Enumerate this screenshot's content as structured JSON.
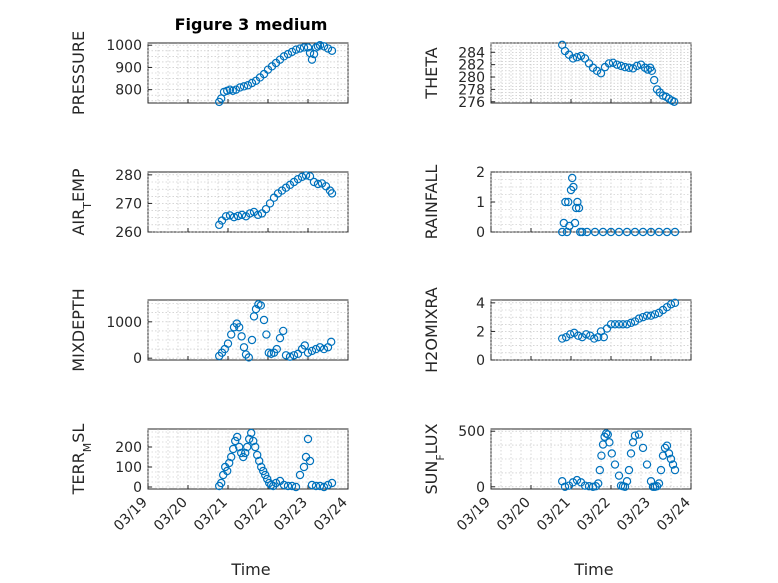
{
  "figure_title": "Figure 3 medium",
  "xlabel": "Time",
  "marker_color": "#0072BD",
  "chart_data": [
    {
      "type": "scatter",
      "name": "PRESSURE",
      "ylabel_main": "PRESSURE",
      "ylabel_sub": "",
      "ylabel_tail": "",
      "ylim": [
        740,
        1010
      ],
      "yticks": [
        800,
        900,
        1000
      ],
      "x": [
        20.78,
        20.83,
        20.9,
        20.98,
        21.05,
        21.12,
        21.2,
        21.3,
        21.4,
        21.5,
        21.6,
        21.7,
        21.8,
        21.9,
        22.0,
        22.1,
        22.2,
        22.3,
        22.4,
        22.5,
        22.6,
        22.7,
        22.8,
        22.9,
        23.0,
        23.05,
        23.1,
        23.15,
        23.2,
        23.25,
        23.3,
        23.4,
        23.5,
        23.6
      ],
      "y": [
        745,
        760,
        790,
        795,
        800,
        795,
        800,
        810,
        815,
        820,
        830,
        840,
        855,
        870,
        890,
        905,
        920,
        935,
        950,
        960,
        970,
        980,
        985,
        990,
        990,
        965,
        935,
        960,
        990,
        995,
        1000,
        995,
        985,
        975
      ]
    },
    {
      "type": "scatter",
      "name": "THETA",
      "ylabel_main": "THETA",
      "ylabel_sub": "",
      "ylabel_tail": "",
      "ylim": [
        275.8,
        285.5
      ],
      "yticks": [
        276,
        278,
        280,
        282,
        284
      ],
      "x": [
        20.78,
        20.85,
        20.95,
        21.05,
        21.15,
        21.25,
        21.35,
        21.45,
        21.55,
        21.65,
        21.75,
        21.85,
        21.95,
        22.05,
        22.15,
        22.25,
        22.35,
        22.45,
        22.55,
        22.65,
        22.75,
        22.85,
        22.92,
        22.98,
        23.02,
        23.08,
        23.15,
        23.22,
        23.3,
        23.38,
        23.45,
        23.52,
        23.58
      ],
      "y": [
        285.2,
        284.2,
        283.6,
        283.0,
        283.2,
        283.4,
        283.0,
        282.2,
        281.5,
        281.0,
        280.6,
        281.6,
        282.2,
        282.3,
        282.0,
        281.8,
        281.6,
        281.5,
        281.4,
        281.8,
        282.0,
        281.5,
        281.2,
        281.5,
        281.0,
        279.5,
        278.0,
        277.5,
        277.0,
        276.8,
        276.5,
        276.2,
        276.0
      ]
    },
    {
      "type": "scatter",
      "name": "AIR_TEMP",
      "ylabel_main": "AIR",
      "ylabel_sub": "T",
      "ylabel_tail": "EMP",
      "ylim": [
        260,
        281
      ],
      "yticks": [
        260,
        270,
        280
      ],
      "x": [
        20.78,
        20.85,
        20.95,
        21.05,
        21.15,
        21.25,
        21.35,
        21.45,
        21.55,
        21.65,
        21.75,
        21.85,
        21.95,
        22.05,
        22.15,
        22.25,
        22.35,
        22.45,
        22.55,
        22.65,
        22.75,
        22.85,
        22.95,
        23.05,
        23.15,
        23.25,
        23.35,
        23.45,
        23.55,
        23.6
      ],
      "y": [
        262.5,
        264,
        265.5,
        265.8,
        265.2,
        265.6,
        266.0,
        265.5,
        266.5,
        267.0,
        266.0,
        266.5,
        268.0,
        270.0,
        272.0,
        273.5,
        274.5,
        275.5,
        276.5,
        277.5,
        278.5,
        279.3,
        279.8,
        279.5,
        277.5,
        276.8,
        277.0,
        276.0,
        274.5,
        273.5
      ]
    },
    {
      "type": "scatter",
      "name": "RAINFALL",
      "ylabel_main": "RAINFALL",
      "ylabel_sub": "",
      "ylabel_tail": "",
      "ylim": [
        0,
        2
      ],
      "yticks": [
        0,
        1,
        2
      ],
      "x": [
        20.78,
        20.82,
        20.86,
        20.9,
        20.93,
        20.96,
        21.0,
        21.03,
        21.06,
        21.1,
        21.13,
        21.16,
        21.2,
        21.23,
        21.28,
        21.4,
        21.6,
        21.8,
        22.0,
        22.2,
        22.4,
        22.6,
        22.8,
        23.0,
        23.2,
        23.4,
        23.6
      ],
      "y": [
        0,
        0.3,
        1.0,
        0,
        1.0,
        0.2,
        1.4,
        1.8,
        1.5,
        0.3,
        0.8,
        1.0,
        0.8,
        0,
        0,
        0,
        0,
        0,
        0,
        0,
        0,
        0,
        0,
        0,
        0,
        0,
        0
      ]
    },
    {
      "type": "scatter",
      "name": "MIXDEPTH",
      "ylabel_main": "MIXDEPTH",
      "ylabel_sub": "",
      "ylabel_tail": "",
      "ylim": [
        -50,
        1600
      ],
      "yticks": [
        0,
        1000
      ],
      "x": [
        20.78,
        20.85,
        20.92,
        21.0,
        21.08,
        21.15,
        21.22,
        21.28,
        21.34,
        21.4,
        21.45,
        21.52,
        21.6,
        21.65,
        21.7,
        21.76,
        21.82,
        21.9,
        21.96,
        22.02,
        22.08,
        22.15,
        22.22,
        22.3,
        22.38,
        22.45,
        22.55,
        22.65,
        22.75,
        22.85,
        22.92,
        23.0,
        23.1,
        23.2,
        23.3,
        23.4,
        23.5,
        23.58
      ],
      "y": [
        60,
        150,
        250,
        400,
        650,
        850,
        950,
        850,
        600,
        300,
        100,
        20,
        500,
        1150,
        1350,
        1480,
        1450,
        1050,
        650,
        150,
        120,
        150,
        250,
        550,
        750,
        80,
        40,
        80,
        120,
        250,
        350,
        150,
        200,
        250,
        300,
        250,
        300,
        450
      ]
    },
    {
      "type": "scatter",
      "name": "H2OMIXRA",
      "ylabel_main": "H2OMIXRA",
      "ylabel_sub": "",
      "ylabel_tail": "",
      "ylim": [
        0,
        4.2
      ],
      "yticks": [
        0,
        2,
        4
      ],
      "x": [
        20.78,
        20.88,
        20.98,
        21.08,
        21.18,
        21.28,
        21.38,
        21.48,
        21.58,
        21.68,
        21.75,
        21.82,
        21.9,
        22.0,
        22.1,
        22.2,
        22.3,
        22.4,
        22.5,
        22.6,
        22.7,
        22.8,
        22.9,
        23.0,
        23.1,
        23.2,
        23.3,
        23.4,
        23.5,
        23.6
      ],
      "y": [
        1.5,
        1.6,
        1.8,
        1.9,
        1.7,
        1.6,
        1.8,
        1.7,
        1.5,
        1.6,
        2.0,
        1.6,
        2.2,
        2.5,
        2.5,
        2.5,
        2.5,
        2.5,
        2.6,
        2.7,
        2.9,
        3.0,
        3.1,
        3.1,
        3.2,
        3.3,
        3.5,
        3.7,
        3.9,
        4.0
      ]
    },
    {
      "type": "scatter",
      "name": "TERR_MSL",
      "ylabel_main": "TERR",
      "ylabel_sub": "M",
      "ylabel_tail": "SL",
      "ylim": [
        -10,
        290
      ],
      "yticks": [
        0,
        100,
        200
      ],
      "x": [
        20.78,
        20.83,
        20.88,
        20.93,
        20.98,
        21.03,
        21.08,
        21.13,
        21.18,
        21.23,
        21.28,
        21.33,
        21.38,
        21.43,
        21.48,
        21.53,
        21.58,
        21.63,
        21.68,
        21.73,
        21.78,
        21.83,
        21.88,
        21.93,
        21.98,
        22.03,
        22.08,
        22.13,
        22.2,
        22.3,
        22.4,
        22.5,
        22.6,
        22.7,
        22.8,
        22.9,
        22.95,
        23.0,
        23.05,
        23.1,
        23.2,
        23.3,
        23.4,
        23.5,
        23.6
      ],
      "y": [
        5,
        20,
        60,
        100,
        80,
        120,
        150,
        190,
        230,
        250,
        200,
        170,
        150,
        170,
        200,
        240,
        270,
        230,
        200,
        160,
        130,
        100,
        80,
        60,
        40,
        20,
        10,
        5,
        20,
        30,
        10,
        5,
        5,
        0,
        60,
        100,
        150,
        240,
        130,
        10,
        5,
        5,
        0,
        10,
        20
      ]
    },
    {
      "type": "scatter",
      "name": "SUN_FLUX",
      "ylabel_main": "SUN",
      "ylabel_sub": "F",
      "ylabel_tail": "LUX",
      "ylim": [
        -20,
        520
      ],
      "yticks": [
        0,
        500
      ],
      "x": [
        20.78,
        20.85,
        20.95,
        21.05,
        21.15,
        21.25,
        21.35,
        21.45,
        21.55,
        21.62,
        21.68,
        21.72,
        21.76,
        21.8,
        21.84,
        21.88,
        21.92,
        21.96,
        22.02,
        22.1,
        22.2,
        22.25,
        22.3,
        22.35,
        22.4,
        22.45,
        22.5,
        22.55,
        22.6,
        22.7,
        22.8,
        22.9,
        23.0,
        23.05,
        23.1,
        23.15,
        23.2,
        23.25,
        23.3,
        23.35,
        23.4,
        23.45,
        23.5,
        23.55,
        23.6
      ],
      "y": [
        50,
        0,
        10,
        40,
        60,
        40,
        10,
        5,
        0,
        5,
        30,
        150,
        280,
        380,
        450,
        480,
        470,
        400,
        300,
        200,
        100,
        10,
        5,
        0,
        50,
        150,
        300,
        400,
        460,
        470,
        350,
        200,
        50,
        0,
        0,
        5,
        30,
        150,
        280,
        350,
        370,
        300,
        250,
        200,
        150
      ]
    }
  ],
  "xticks_left": [
    "03/19",
    "03/20",
    "03/21",
    "03/22",
    "03/23",
    "03/24"
  ],
  "xticks_right": [
    "03/19",
    "03/20",
    "03/21",
    "03/22",
    "03/23",
    "03/24"
  ],
  "x_range": [
    19,
    24
  ]
}
